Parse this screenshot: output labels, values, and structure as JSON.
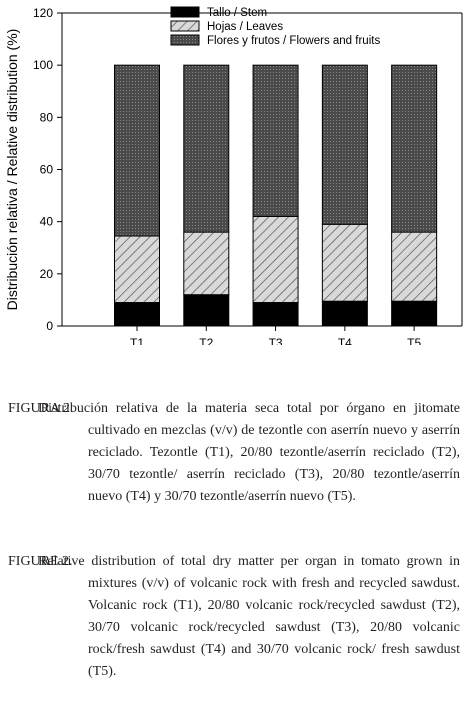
{
  "chart_data": {
    "type": "bar",
    "stacked": true,
    "categories": [
      "T1",
      "T2",
      "T3",
      "T4",
      "T5"
    ],
    "series": [
      {
        "name": "Tallo / Stem",
        "values": [
          9,
          12,
          9,
          9.5,
          9.5
        ],
        "color": "#000000",
        "pattern": "solid"
      },
      {
        "name": "Hojas / Leaves",
        "values": [
          25.5,
          24,
          33,
          29.5,
          26.5
        ],
        "color": "#d9d9d9",
        "pattern": "diagonal-hatch"
      },
      {
        "name": "Flores y frutos / Flowers and fruits",
        "values": [
          65.5,
          64,
          58,
          61,
          64
        ],
        "color": "#4d4d4d",
        "pattern": "dotted"
      }
    ],
    "ylabel": "Distribución relativa / Relative distribution (%)",
    "xlabel": "",
    "ylim": [
      0,
      120
    ],
    "yticks": [
      "0",
      "20",
      "40",
      "60",
      "80",
      "100",
      "120"
    ],
    "grid": false,
    "legend_position": "top-right"
  },
  "caption_es": {
    "label": "FIGURA 2.",
    "text": "Distribución relativa de la materia seca total por órgano en jitomate cultivado en mezclas (v/v) de tezontle con aserrín nuevo y aserrín reciclado. Tezontle (T1), 20/80 tezontle/aserrín reciclado (T2), 30/70 tezontle/ aserrín reciclado (T3), 20/80 tezontle/aserrín nuevo (T4) y 30/70 tezontle/aserrín nuevo (T5)."
  },
  "caption_en": {
    "label": "FIGURE 2.",
    "text": "Relative distribution of total dry matter per organ in tomato grown in mixtures (v/v) of volcanic rock with fresh and recycled sawdust. Volcanic rock (T1), 20/80 volcanic rock/recycled sawdust (T2), 30/70 volcanic rock/recycled sawdust (T3), 20/80 volcanic rock/fresh sawdust (T4) and 30/70 volcanic rock/ fresh sawdust (T5)."
  }
}
